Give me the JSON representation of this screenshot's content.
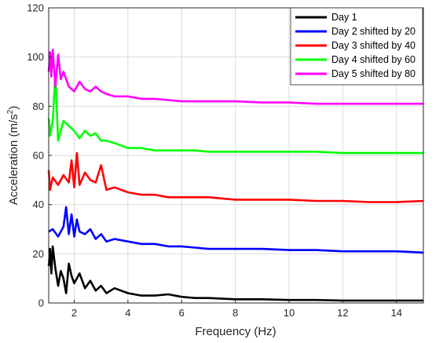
{
  "chart_data": {
    "type": "line",
    "xlabel": "Frequency (Hz)",
    "ylabel_main": "Acceleration (m/s",
    "ylabel_sup": "2",
    "ylabel_end": ")",
    "xlim": [
      1.05,
      15
    ],
    "ylim": [
      0,
      120
    ],
    "xticks": [
      2,
      4,
      6,
      8,
      10,
      12,
      14
    ],
    "yticks": [
      0,
      20,
      40,
      60,
      80,
      100,
      120
    ],
    "xtick_labels": [
      "2",
      "4",
      "6",
      "8",
      "10",
      "12",
      "14"
    ],
    "ytick_labels": [
      "0",
      "20",
      "40",
      "60",
      "80",
      "100",
      "120"
    ],
    "grid": true,
    "legend_position": "top-right",
    "series": [
      {
        "name": "Day 1",
        "color": "#000000",
        "x": [
          1.05,
          1.1,
          1.15,
          1.2,
          1.3,
          1.4,
          1.5,
          1.6,
          1.7,
          1.8,
          1.9,
          2.0,
          2.2,
          2.4,
          2.6,
          2.8,
          3.0,
          3.2,
          3.5,
          4.0,
          4.5,
          5.0,
          5.5,
          6.0,
          6.5,
          7.0,
          8.0,
          9.0,
          10.0,
          11.0,
          12.0,
          13.0,
          14.0,
          15.0
        ],
        "y": [
          15,
          22,
          12,
          23,
          14,
          7,
          13,
          10,
          4,
          16,
          11,
          8,
          12,
          6,
          9,
          5,
          7,
          4,
          6,
          4,
          3,
          3,
          3.5,
          2.5,
          2,
          2,
          1.5,
          1.5,
          1.2,
          1.2,
          1,
          1,
          1,
          1
        ]
      },
      {
        "name": "Day 2 shifted by 20",
        "color": "#0000ff",
        "x": [
          1.05,
          1.2,
          1.4,
          1.6,
          1.7,
          1.8,
          1.9,
          2.0,
          2.1,
          2.2,
          2.4,
          2.6,
          2.8,
          3.0,
          3.2,
          3.5,
          4.0,
          4.5,
          5.0,
          5.5,
          6.0,
          6.5,
          7.0,
          8.0,
          9.0,
          10.0,
          11.0,
          12.0,
          13.0,
          14.0,
          15.0
        ],
        "y": [
          29,
          30,
          27,
          31,
          39,
          28,
          36,
          27,
          34,
          29,
          28,
          30,
          26,
          28,
          25,
          26,
          25,
          24,
          24,
          23,
          23,
          22.5,
          22,
          22,
          22,
          21.5,
          21.5,
          21,
          21,
          21,
          20.5
        ]
      },
      {
        "name": "Day 3 shifted by 40",
        "color": "#ff0000",
        "x": [
          1.05,
          1.1,
          1.2,
          1.4,
          1.6,
          1.8,
          1.9,
          2.0,
          2.1,
          2.2,
          2.4,
          2.6,
          2.8,
          3.0,
          3.2,
          3.5,
          4.0,
          4.5,
          5.0,
          5.5,
          6.0,
          6.5,
          7.0,
          8.0,
          9.0,
          10.0,
          11.0,
          12.0,
          13.0,
          14.0,
          15.0
        ],
        "y": [
          54,
          46,
          51,
          48,
          52,
          49,
          58,
          47,
          61,
          48,
          53,
          50,
          49,
          56,
          46,
          47,
          45,
          44,
          44,
          43,
          43,
          43,
          43,
          42,
          42,
          42,
          41.5,
          41.5,
          41,
          41,
          41.5
        ]
      },
      {
        "name": "Day 4 shifted by 60",
        "color": "#00ff00",
        "x": [
          1.05,
          1.1,
          1.2,
          1.3,
          1.4,
          1.6,
          1.8,
          2.0,
          2.2,
          2.4,
          2.6,
          2.8,
          3.0,
          3.2,
          3.5,
          4.0,
          4.5,
          5.0,
          5.5,
          6.0,
          6.5,
          7.0,
          8.0,
          9.0,
          10.0,
          11.0,
          12.0,
          13.0,
          14.0,
          15.0
        ],
        "y": [
          75,
          68,
          74,
          93,
          66,
          74,
          72,
          70,
          67,
          70,
          68,
          69,
          66,
          66,
          65,
          63,
          63,
          62,
          62,
          62,
          62,
          61.5,
          61.5,
          61.5,
          61.5,
          61.5,
          61,
          61,
          61,
          61
        ]
      },
      {
        "name": "Day 5 shifted by 80",
        "color": "#ff00ff",
        "x": [
          1.05,
          1.1,
          1.15,
          1.2,
          1.3,
          1.4,
          1.5,
          1.6,
          1.8,
          2.0,
          2.2,
          2.4,
          2.6,
          2.8,
          3.0,
          3.2,
          3.5,
          4.0,
          4.5,
          5.0,
          5.5,
          6.0,
          6.5,
          7.0,
          8.0,
          9.0,
          10.0,
          11.0,
          12.0,
          13.0,
          14.0,
          15.0
        ],
        "y": [
          94,
          102,
          92,
          103,
          88,
          101,
          91,
          94,
          88,
          86,
          90,
          87,
          86,
          88,
          86,
          85,
          84,
          84,
          83,
          83,
          82.5,
          82,
          82,
          82,
          82,
          81.5,
          81.5,
          81,
          81,
          81,
          81,
          81
        ]
      }
    ]
  }
}
